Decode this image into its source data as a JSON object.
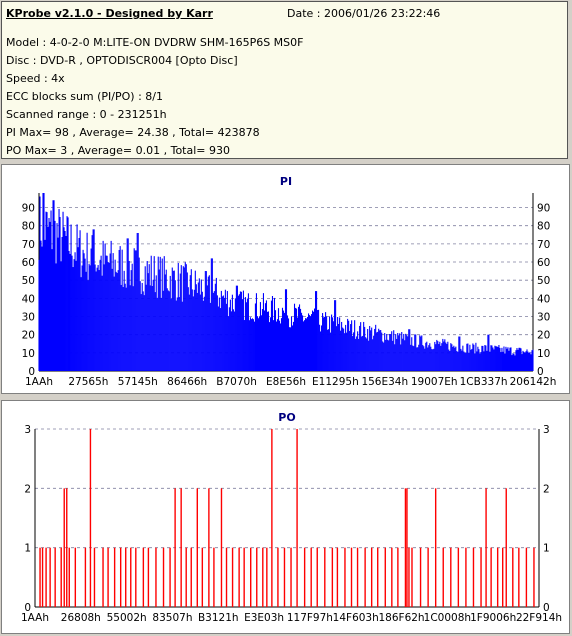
{
  "header": {
    "title": "KProbe v2.1.0 - Designed by Karr",
    "date": "Date : 2006/01/26 23:22:46",
    "lines": [
      "Model : 4-0-2-0 M:LITE-ON DVDRW SHM-165P6S MS0F",
      "Disc : DVD-R , OPTODISCR004 [Opto Disc]",
      "Speed : 4x",
      "ECC blocks sum (PI/PO) : 8/1",
      "Scanned range : 0 - 231251h",
      "PI Max= 98 , Average= 24.38 , Total= 423878",
      "PO Max= 3 , Average= 0.01 , Total= 930"
    ]
  },
  "chart_data": [
    {
      "type": "bar",
      "title": "PI",
      "color": "#0000ff",
      "ylim": [
        0,
        98
      ],
      "yticks": [
        0,
        10,
        20,
        30,
        40,
        50,
        60,
        70,
        80,
        90
      ],
      "xtick_labels": [
        "1AAh",
        "27565h",
        "57145h",
        "86466h",
        "B7070h",
        "E8E56h",
        "E11295h",
        "156E34h",
        "19007Eh",
        "1CB337h",
        "206142h"
      ],
      "grid": true,
      "envelope": [
        [
          0.0,
          85
        ],
        [
          0.02,
          82
        ],
        [
          0.05,
          77
        ],
        [
          0.08,
          70
        ],
        [
          0.12,
          64
        ],
        [
          0.16,
          62
        ],
        [
          0.2,
          59
        ],
        [
          0.25,
          55
        ],
        [
          0.3,
          51
        ],
        [
          0.35,
          46
        ],
        [
          0.4,
          39
        ],
        [
          0.45,
          37
        ],
        [
          0.5,
          34
        ],
        [
          0.55,
          30
        ],
        [
          0.6,
          27
        ],
        [
          0.65,
          24
        ],
        [
          0.7,
          21
        ],
        [
          0.75,
          18
        ],
        [
          0.8,
          16
        ],
        [
          0.85,
          14
        ],
        [
          0.9,
          13
        ],
        [
          0.95,
          12
        ],
        [
          1.0,
          11
        ]
      ],
      "peaks": [
        [
          0.01,
          98
        ],
        [
          0.03,
          94
        ],
        [
          0.11,
          78
        ],
        [
          0.18,
          73
        ],
        [
          0.2,
          76
        ],
        [
          0.35,
          62
        ],
        [
          0.4,
          47
        ],
        [
          0.5,
          45
        ],
        [
          0.56,
          44
        ],
        [
          0.6,
          39
        ],
        [
          0.75,
          23
        ],
        [
          0.85,
          19
        ],
        [
          0.91,
          20
        ]
      ]
    },
    {
      "type": "bar",
      "title": "PO",
      "color": "#ff0000",
      "ylim": [
        0,
        3
      ],
      "yticks": [
        0,
        1,
        2,
        3
      ],
      "xtick_labels": [
        "1AAh",
        "26808h",
        "55002h",
        "83507h",
        "B3121h",
        "E3E03h",
        "117F97h",
        "14F603h",
        "186F62h",
        "1C0008h",
        "1F9006h",
        "22F914h"
      ],
      "grid": true,
      "spikes": [
        [
          0.01,
          1
        ],
        [
          0.015,
          1
        ],
        [
          0.022,
          1
        ],
        [
          0.03,
          1
        ],
        [
          0.04,
          1
        ],
        [
          0.052,
          1
        ],
        [
          0.058,
          2
        ],
        [
          0.063,
          2
        ],
        [
          0.068,
          1
        ],
        [
          0.08,
          1
        ],
        [
          0.1,
          1
        ],
        [
          0.11,
          3
        ],
        [
          0.118,
          1
        ],
        [
          0.135,
          1
        ],
        [
          0.145,
          1
        ],
        [
          0.158,
          1
        ],
        [
          0.17,
          1
        ],
        [
          0.18,
          1
        ],
        [
          0.19,
          1
        ],
        [
          0.2,
          1
        ],
        [
          0.215,
          1
        ],
        [
          0.225,
          1
        ],
        [
          0.24,
          1
        ],
        [
          0.255,
          1
        ],
        [
          0.268,
          1
        ],
        [
          0.278,
          2
        ],
        [
          0.29,
          2
        ],
        [
          0.3,
          1
        ],
        [
          0.31,
          1
        ],
        [
          0.322,
          2
        ],
        [
          0.332,
          1
        ],
        [
          0.345,
          2
        ],
        [
          0.355,
          1
        ],
        [
          0.37,
          2
        ],
        [
          0.38,
          1
        ],
        [
          0.392,
          1
        ],
        [
          0.405,
          1
        ],
        [
          0.415,
          1
        ],
        [
          0.428,
          1
        ],
        [
          0.44,
          1
        ],
        [
          0.452,
          1
        ],
        [
          0.46,
          1
        ],
        [
          0.47,
          3
        ],
        [
          0.482,
          1
        ],
        [
          0.495,
          1
        ],
        [
          0.508,
          1
        ],
        [
          0.52,
          3
        ],
        [
          0.535,
          1
        ],
        [
          0.548,
          1
        ],
        [
          0.56,
          1
        ],
        [
          0.575,
          1
        ],
        [
          0.59,
          1
        ],
        [
          0.6,
          1
        ],
        [
          0.615,
          1
        ],
        [
          0.628,
          1
        ],
        [
          0.64,
          1
        ],
        [
          0.655,
          1
        ],
        [
          0.668,
          1
        ],
        [
          0.68,
          1
        ],
        [
          0.695,
          1
        ],
        [
          0.708,
          1
        ],
        [
          0.72,
          1
        ],
        [
          0.735,
          2
        ],
        [
          0.738,
          2
        ],
        [
          0.742,
          1
        ],
        [
          0.748,
          1
        ],
        [
          0.765,
          1
        ],
        [
          0.78,
          1
        ],
        [
          0.795,
          2
        ],
        [
          0.81,
          1
        ],
        [
          0.825,
          1
        ],
        [
          0.84,
          1
        ],
        [
          0.855,
          1
        ],
        [
          0.87,
          1
        ],
        [
          0.885,
          1
        ],
        [
          0.895,
          2
        ],
        [
          0.905,
          1
        ],
        [
          0.918,
          1
        ],
        [
          0.928,
          1
        ],
        [
          0.935,
          2
        ],
        [
          0.948,
          1
        ],
        [
          0.96,
          1
        ],
        [
          0.975,
          1
        ],
        [
          0.99,
          1
        ]
      ]
    }
  ]
}
